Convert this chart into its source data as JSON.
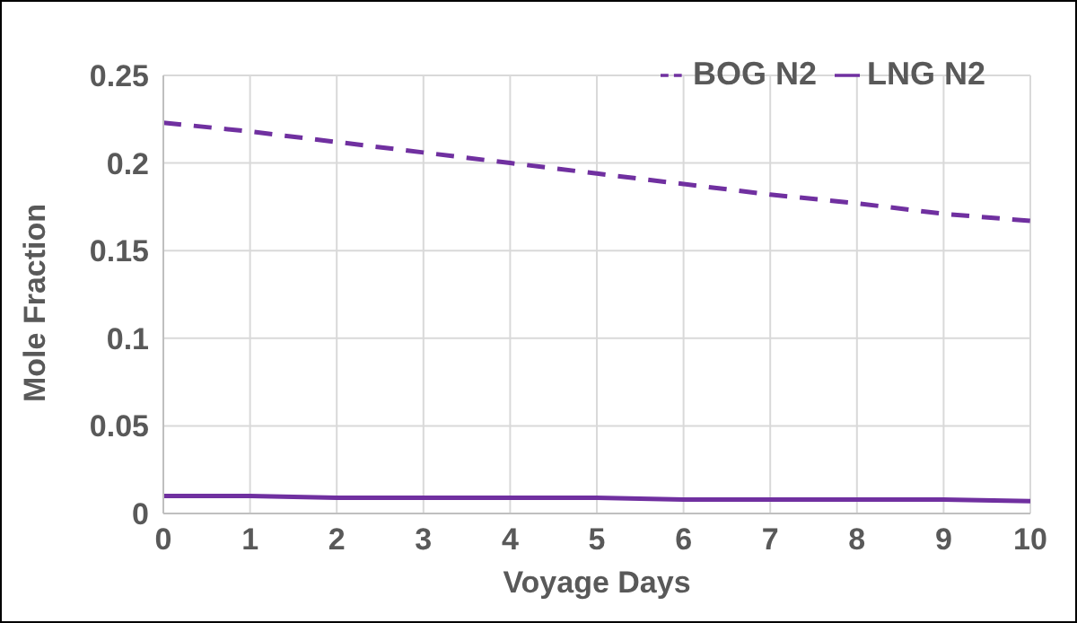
{
  "chart_data": {
    "type": "line",
    "xlabel": "Voyage Days",
    "ylabel": "Mole Fraction",
    "x": [
      0,
      1,
      2,
      3,
      4,
      5,
      6,
      7,
      8,
      9,
      10
    ],
    "series": [
      {
        "name": "BOG N2",
        "color": "#7030a0",
        "line_style": "dashed",
        "values": [
          0.223,
          0.218,
          0.212,
          0.206,
          0.2,
          0.194,
          0.188,
          0.182,
          0.177,
          0.171,
          0.167
        ]
      },
      {
        "name": "LNG N2",
        "color": "#7030a0",
        "line_style": "solid",
        "values": [
          0.01,
          0.01,
          0.009,
          0.009,
          0.009,
          0.009,
          0.008,
          0.008,
          0.008,
          0.008,
          0.007
        ]
      }
    ],
    "xlim": [
      0,
      10
    ],
    "xticks": [
      0,
      1,
      2,
      3,
      4,
      5,
      6,
      7,
      8,
      9,
      10
    ],
    "ylim": [
      0,
      0.25
    ],
    "yticks": [
      0,
      0.05,
      0.1,
      0.15,
      0.2,
      0.25
    ],
    "grid": true,
    "legend": "top right",
    "marker": "none"
  }
}
